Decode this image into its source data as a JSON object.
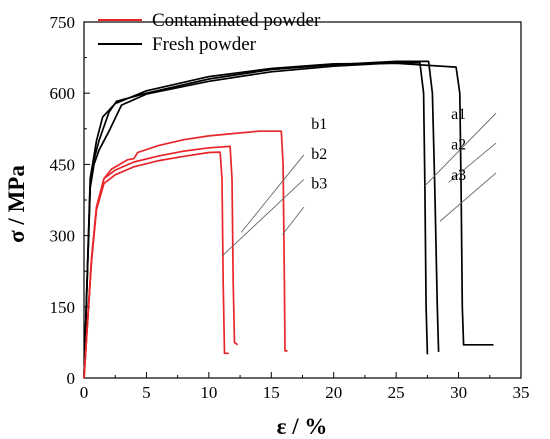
{
  "chart_data": {
    "type": "line",
    "xlabel": "ε / %",
    "ylabel": "σ / MPa",
    "xlim": [
      0,
      35
    ],
    "ylim": [
      0,
      750
    ],
    "xticks": [
      "0",
      "5",
      "10",
      "15",
      "20",
      "25",
      "30",
      "35"
    ],
    "yticks": [
      "0",
      "150",
      "300",
      "450",
      "600",
      "750"
    ],
    "grid": false,
    "legend": {
      "placement": "top-left",
      "entries": [
        {
          "label": "Contaminated powder",
          "color": "#e8262a"
        },
        {
          "label": "Fresh powder",
          "color": "#000000"
        }
      ]
    },
    "series": [
      {
        "name": "a1",
        "group": "Fresh powder",
        "color": "#000000",
        "x": [
          0,
          0.5,
          0.8,
          1.2,
          2.0,
          3.0,
          5,
          10,
          15,
          20,
          25,
          26.9,
          27.2,
          27.3,
          27.4,
          27.5
        ],
        "y": [
          0,
          400,
          450,
          480,
          520,
          575,
          598,
          625,
          645,
          657,
          664,
          664,
          600,
          400,
          150,
          50
        ]
      },
      {
        "name": "a2",
        "group": "Fresh powder",
        "color": "#000000",
        "x": [
          0,
          0.5,
          0.8,
          1.2,
          2.0,
          2.6,
          5,
          10,
          15,
          20,
          25,
          27.6,
          27.9,
          28.1,
          28.3,
          28.4
        ],
        "y": [
          0,
          405,
          460,
          500,
          560,
          583,
          600,
          630,
          650,
          660,
          667,
          667,
          600,
          400,
          150,
          55
        ]
      },
      {
        "name": "a3",
        "group": "Fresh powder",
        "color": "#000000",
        "x": [
          0,
          0.5,
          1.0,
          1.5,
          2.5,
          5,
          10,
          15,
          20,
          25,
          29.8,
          30.1,
          30.2,
          30.3,
          30.4,
          32.8
        ],
        "y": [
          0,
          420,
          500,
          550,
          578,
          605,
          635,
          652,
          662,
          663,
          655,
          600,
          400,
          150,
          70,
          70
        ]
      },
      {
        "name": "b1",
        "group": "Contaminated powder",
        "color": "#e8262a",
        "x": [
          0,
          0.6,
          1.0,
          1.6,
          2.2,
          3.5,
          4.0,
          4.3,
          6,
          8,
          10,
          12,
          14,
          15.8,
          15.95,
          16.05,
          16.1,
          16.3
        ],
        "y": [
          0,
          250,
          360,
          420,
          440,
          460,
          462,
          475,
          490,
          502,
          510,
          515,
          520,
          520,
          450,
          200,
          57,
          57
        ]
      },
      {
        "name": "b2",
        "group": "Contaminated powder",
        "color": "#e8262a",
        "x": [
          0,
          0.6,
          1.0,
          1.6,
          2.5,
          4,
          6,
          8,
          10,
          11.7,
          11.85,
          11.95,
          12.05,
          12.3
        ],
        "y": [
          0,
          250,
          360,
          420,
          438,
          455,
          468,
          478,
          485,
          488,
          420,
          200,
          75,
          70
        ]
      },
      {
        "name": "b3",
        "group": "Contaminated powder",
        "color": "#e8262a",
        "x": [
          0,
          0.6,
          1.0,
          1.6,
          2.5,
          4,
          6,
          8,
          10,
          10.9,
          11.05,
          11.15,
          11.25,
          11.6
        ],
        "y": [
          0,
          245,
          355,
          410,
          428,
          445,
          458,
          467,
          475,
          476,
          420,
          200,
          52,
          52
        ]
      }
    ],
    "annotations": [
      {
        "label": "a1",
        "x": 29.4,
        "y": 556,
        "line": [
          [
            27.3,
            405
          ],
          [
            33.0,
            558
          ]
        ]
      },
      {
        "label": "a2",
        "x": 29.4,
        "y": 492,
        "line": [
          [
            29.2,
            412
          ],
          [
            33.0,
            495
          ]
        ]
      },
      {
        "label": "a3",
        "x": 29.4,
        "y": 428,
        "line": [
          [
            28.5,
            330
          ],
          [
            33.0,
            432
          ]
        ]
      },
      {
        "label": "b1",
        "x": 18.2,
        "y": 535,
        "line": [
          [
            12.6,
            307
          ],
          [
            17.6,
            470
          ]
        ]
      },
      {
        "label": "b2",
        "x": 18.2,
        "y": 472,
        "line": [
          [
            11.1,
            258
          ],
          [
            17.6,
            418
          ]
        ]
      },
      {
        "label": "b3",
        "x": 18.2,
        "y": 410,
        "line": [
          [
            15.9,
            302
          ],
          [
            17.6,
            360
          ]
        ]
      }
    ]
  }
}
